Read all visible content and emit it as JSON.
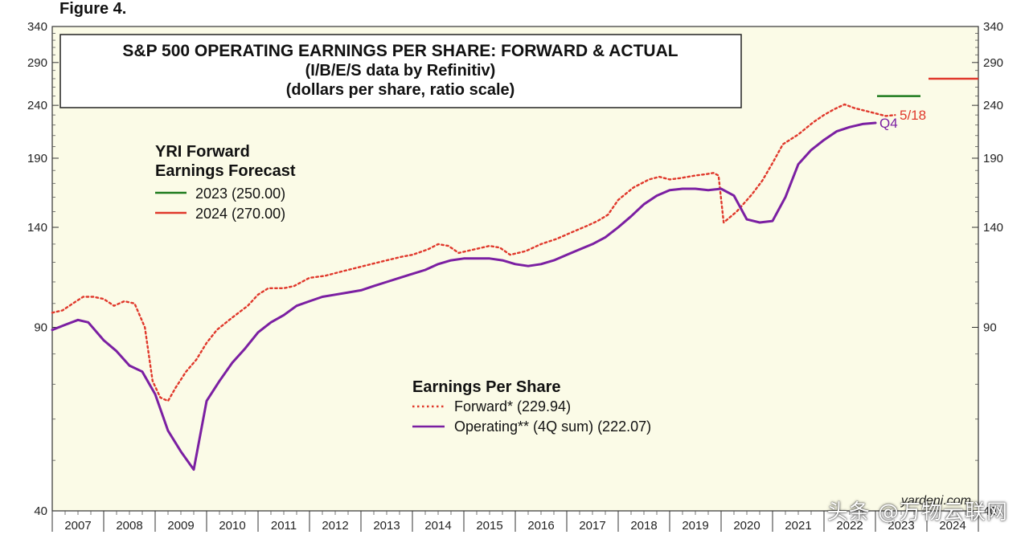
{
  "figure_label": "Figure 4.",
  "colors": {
    "plot_bg": "#fbfbe7",
    "forward": "#e0382b",
    "operating": "#7b1fa2",
    "forecast_2023": "#1c7a1c",
    "forecast_2024": "#e0382b"
  },
  "title_box": {
    "line1": "S&P 500 OPERATING EARNINGS PER SHARE: FORWARD & ACTUAL",
    "line2": "(I/B/E/S data by Refinitiv)",
    "line3": "(dollars per share, ratio scale)"
  },
  "forecast_legend": {
    "heading1": "YRI Forward",
    "heading2": "Earnings Forecast",
    "item_2023": "2023 (250.00)",
    "item_2024": "2024 (270.00)"
  },
  "eps_legend": {
    "heading": "Earnings Per Share",
    "forward": "Forward* (229.94)",
    "operating": "Operating** (4Q sum) (222.07)"
  },
  "annotations": {
    "forward_end": "5/18",
    "operating_end": "Q4"
  },
  "source": "yardeni.com",
  "watermark": "头条 @万物云联网",
  "chart_data": {
    "type": "line",
    "y_scale": "log",
    "ylim": [
      40,
      340
    ],
    "yticks": [
      "340",
      "290",
      "240",
      "190",
      "140",
      "90",
      "40"
    ],
    "xlim": [
      2007.0,
      2025.0
    ],
    "x_tick_labels": [
      "2007",
      "2008",
      "2009",
      "2010",
      "2011",
      "2012",
      "2013",
      "2014",
      "2015",
      "2016",
      "2017",
      "2018",
      "2019",
      "2020",
      "2021",
      "2022",
      "2023",
      "2024"
    ],
    "series": [
      {
        "name": "Forward* (229.94)",
        "style": "dotted",
        "x": [
          2007.0,
          2007.2,
          2007.4,
          2007.6,
          2007.8,
          2008.0,
          2008.2,
          2008.4,
          2008.6,
          2008.8,
          2008.95,
          2009.1,
          2009.25,
          2009.4,
          2009.6,
          2009.8,
          2010.0,
          2010.2,
          2010.5,
          2010.8,
          2011.0,
          2011.2,
          2011.5,
          2011.7,
          2012.0,
          2012.3,
          2012.6,
          2012.9,
          2013.2,
          2013.5,
          2013.8,
          2014.0,
          2014.3,
          2014.5,
          2014.7,
          2014.9,
          2015.2,
          2015.5,
          2015.7,
          2015.9,
          2016.2,
          2016.5,
          2016.8,
          2017.1,
          2017.4,
          2017.6,
          2017.8,
          2018.0,
          2018.3,
          2018.6,
          2018.8,
          2019.0,
          2019.2,
          2019.5,
          2019.7,
          2019.85,
          2019.95,
          2020.05,
          2020.3,
          2020.6,
          2020.8,
          2021.0,
          2021.2,
          2021.5,
          2021.8,
          2022.0,
          2022.2,
          2022.4,
          2022.6,
          2022.9,
          2023.2,
          2023.38
        ],
        "y": [
          96,
          97,
          100,
          103,
          103,
          102,
          99,
          101,
          100,
          90,
          71,
          66,
          65,
          69,
          74,
          78,
          84,
          89,
          94,
          99,
          104,
          107,
          107,
          108,
          112,
          113,
          115,
          117,
          119,
          121,
          123,
          124,
          127,
          130,
          129,
          125,
          127,
          129,
          128,
          124,
          126,
          130,
          133,
          137,
          141,
          144,
          148,
          158,
          167,
          173,
          175,
          173,
          174,
          176,
          177,
          178,
          176,
          143,
          150,
          162,
          172,
          186,
          202,
          211,
          223,
          230,
          236,
          241,
          237,
          233,
          229,
          229.94
        ]
      },
      {
        "name": "Operating** (4Q sum) (222.07)",
        "style": "solid",
        "x": [
          2007.0,
          2007.25,
          2007.5,
          2007.7,
          2008.0,
          2008.25,
          2008.5,
          2008.75,
          2009.0,
          2009.25,
          2009.5,
          2009.75,
          2010.0,
          2010.25,
          2010.5,
          2010.75,
          2011.0,
          2011.25,
          2011.5,
          2011.75,
          2012.0,
          2012.25,
          2012.5,
          2012.75,
          2013.0,
          2013.25,
          2013.5,
          2013.75,
          2014.0,
          2014.25,
          2014.5,
          2014.75,
          2015.0,
          2015.25,
          2015.5,
          2015.75,
          2016.0,
          2016.25,
          2016.5,
          2016.75,
          2017.0,
          2017.25,
          2017.5,
          2017.75,
          2018.0,
          2018.25,
          2018.5,
          2018.75,
          2019.0,
          2019.25,
          2019.5,
          2019.75,
          2020.0,
          2020.25,
          2020.5,
          2020.75,
          2021.0,
          2021.25,
          2021.5,
          2021.75,
          2022.0,
          2022.25,
          2022.5,
          2022.75,
          2023.0
        ],
        "y": [
          89,
          91,
          93,
          92,
          85,
          81,
          76,
          74,
          67,
          57,
          52,
          48,
          65,
          71,
          77,
          82,
          88,
          92,
          95,
          99,
          101,
          103,
          104,
          105,
          106,
          108,
          110,
          112,
          114,
          116,
          119,
          121,
          122,
          122,
          122,
          121,
          119,
          118,
          119,
          121,
          124,
          127,
          130,
          134,
          140,
          147,
          155,
          161,
          165,
          166,
          166,
          165,
          166,
          161,
          145,
          143,
          144,
          160,
          185,
          197,
          206,
          214,
          218,
          221,
          222.07
        ]
      }
    ],
    "forecasts": [
      {
        "label": "2023 (250.00)",
        "year": "2023",
        "value": 250,
        "x_start": 2023.0,
        "x_end": 2024.0
      },
      {
        "label": "2024 (270.00)",
        "year": "2024",
        "value": 270,
        "x_start": 2024.0,
        "x_end": 2025.0
      }
    ]
  }
}
